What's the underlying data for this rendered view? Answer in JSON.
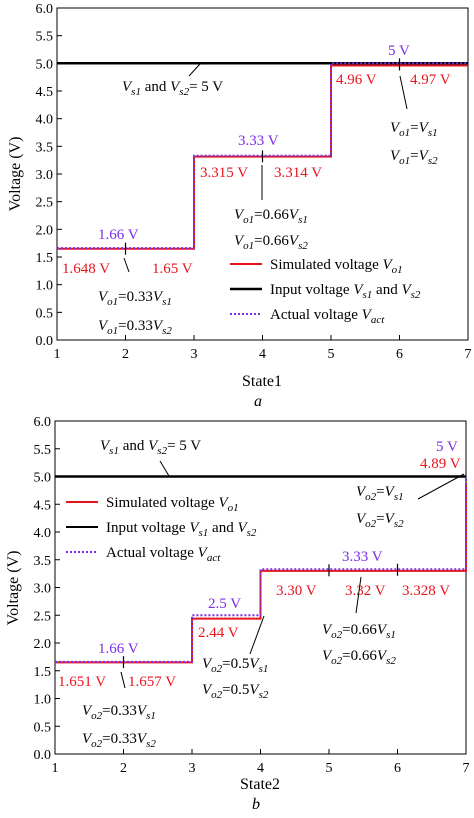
{
  "chart_data": [
    {
      "type": "line",
      "caption": "a",
      "xlabel": "State1",
      "ylabel": "Voltage (V)",
      "xlim": [
        1,
        7
      ],
      "ylim": [
        0.0,
        6.0
      ],
      "xticks": [
        "1",
        "2",
        "3",
        "4",
        "5",
        "6",
        "7"
      ],
      "yticks": [
        "0.0",
        "0.5",
        "1.0",
        "1.5",
        "2.0",
        "2.5",
        "3.0",
        "3.5",
        "4.0",
        "4.5",
        "5.0",
        "5.5",
        "6.0"
      ],
      "legend": {
        "placement": "bottom-right",
        "entries": [
          {
            "text": "Simulated voltage ",
            "sub": "V",
            "subsub": "o1",
            "color": "#e8141c",
            "style": "solid"
          },
          {
            "text": "Input voltage ",
            "sub": "V",
            "subsub": "s1",
            "tail": " and ",
            "sub2": "V",
            "subsub2": "s2",
            "color": "#000000",
            "style": "solid"
          },
          {
            "text": "Actual voltage ",
            "sub": "V",
            "subsub": "act",
            "color": "#7b2de6",
            "style": "dotted"
          }
        ]
      },
      "series": [
        {
          "name": "Simulated voltage Vo1",
          "color": "#e8141c",
          "style": "solid",
          "points": [
            [
              1,
              1.648
            ],
            [
              3,
              1.648
            ],
            [
              3,
              3.315
            ],
            [
              5,
              3.315
            ],
            [
              5,
              4.96
            ],
            [
              7,
              4.96
            ]
          ]
        },
        {
          "name": "Input voltage Vs1 and Vs2",
          "color": "#000000",
          "style": "solid",
          "points": [
            [
              1,
              5.0
            ],
            [
              7,
              5.0
            ]
          ]
        },
        {
          "name": "Actual voltage Vact",
          "color": "#7b2de6",
          "style": "dotted",
          "points": [
            [
              1,
              1.66
            ],
            [
              3,
              1.66
            ],
            [
              3,
              3.33
            ],
            [
              5,
              3.33
            ],
            [
              5,
              5.0
            ],
            [
              7,
              5.0
            ]
          ]
        }
      ],
      "labels": {
        "purple": [
          "1.66 V",
          "3.33 V",
          "5 V"
        ],
        "red": [
          "1.648 V",
          "1.65 V",
          "3.315 V",
          "3.314 V",
          "4.96 V",
          "4.97 V"
        ],
        "input_note": "and",
        "input_value": "= 5 V",
        "eq1a": "=0.33",
        "eq1b": "=0.33",
        "eq2a": "=0.66",
        "eq2b": "=0.66",
        "eq3a": "=",
        "eq3b": "="
      }
    },
    {
      "type": "line",
      "caption": "b",
      "xlabel": "State2",
      "ylabel": "Voltage (V)",
      "xlim": [
        1,
        7
      ],
      "ylim": [
        0.0,
        6.0
      ],
      "xticks": [
        "1",
        "2",
        "3",
        "4",
        "5",
        "6",
        "7"
      ],
      "yticks": [
        "0.0",
        "0.5",
        "1.0",
        "1.5",
        "2.0",
        "2.5",
        "3.0",
        "3.5",
        "4.0",
        "4.5",
        "5.0",
        "5.5",
        "6.0"
      ],
      "legend": {
        "placement": "top-left",
        "entries": [
          {
            "text": "Simulated voltage ",
            "sub": "V",
            "subsub": "o1",
            "color": "#e8141c",
            "style": "solid"
          },
          {
            "text": "Input voltage ",
            "sub": "V",
            "subsub": "s1",
            "tail": " and ",
            "sub2": "V",
            "subsub2": "s2",
            "color": "#000000",
            "style": "solid"
          },
          {
            "text": "Actual voltage ",
            "sub": "V",
            "subsub": "act",
            "color": "#7b2de6",
            "style": "dotted"
          }
        ]
      },
      "series": [
        {
          "name": "Simulated voltage Vo1",
          "color": "#e8141c",
          "style": "solid",
          "points": [
            [
              1,
              1.651
            ],
            [
              3,
              1.651
            ],
            [
              3,
              2.44
            ],
            [
              4,
              2.44
            ],
            [
              4,
              3.3
            ],
            [
              7,
              3.3
            ],
            [
              7,
              4.89
            ]
          ]
        },
        {
          "name": "Input voltage Vs1 and Vs2",
          "color": "#000000",
          "style": "solid",
          "points": [
            [
              1,
              5.0
            ],
            [
              7,
              5.0
            ]
          ]
        },
        {
          "name": "Actual voltage Vact",
          "color": "#7b2de6",
          "style": "dotted",
          "points": [
            [
              1,
              1.66
            ],
            [
              3,
              1.66
            ],
            [
              3,
              2.5
            ],
            [
              4,
              2.5
            ],
            [
              4,
              3.33
            ],
            [
              7,
              3.33
            ],
            [
              7,
              5.0
            ]
          ]
        }
      ],
      "labels": {
        "purple": [
          "1.66 V",
          "2.5 V",
          "3.33 V",
          "5 V"
        ],
        "red": [
          "1.651 V",
          "1.657 V",
          "2.44 V",
          "3.30 V",
          "3.32 V",
          "3.328 V",
          "4.89 V"
        ],
        "input_note": "and",
        "input_value": "= 5 V",
        "eq1a": "=0.33",
        "eq1b": "=0.33",
        "eq2a": "=0.5",
        "eq2b": "=0.5",
        "eq3a": "=0.66",
        "eq3b": "=0.66",
        "eq4a": "=",
        "eq4b": "="
      }
    }
  ]
}
